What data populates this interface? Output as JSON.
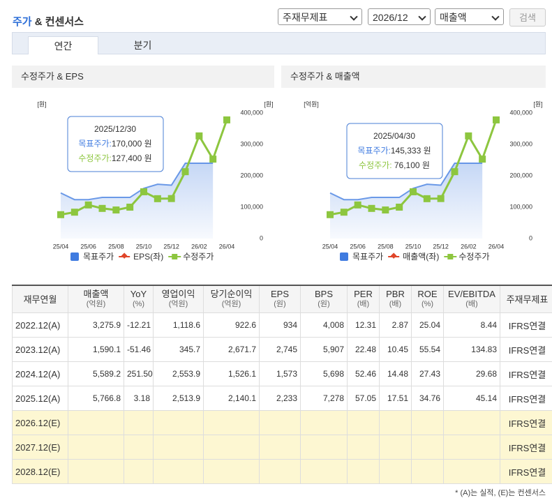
{
  "header": {
    "title_highlight": "주가",
    "title_rest": "& 컨센서스",
    "selects": [
      "주재무제표",
      "2026/12",
      "매출액"
    ],
    "button": "검색"
  },
  "tabs": [
    "연간",
    "분기"
  ],
  "active_tab": 0,
  "chart_data": [
    {
      "type": "line",
      "title": "수정주가 & EPS",
      "ylabel": "[원]",
      "y2label": "[원]",
      "x": [
        "25/04",
        null,
        "25/06",
        null,
        "25/08",
        null,
        "25/10",
        null,
        "25/12",
        null,
        "26/02",
        null,
        "26/04"
      ],
      "y2lim": [
        0,
        400000
      ],
      "y2ticks": [
        0,
        {
          "value": 100000,
          "label": "100,000"
        },
        {
          "value": 200000,
          "label": "200,000"
        },
        {
          "value": 300000,
          "label": "300,000"
        },
        {
          "value": 400000,
          "label": "400,000"
        }
      ],
      "grid": false,
      "legend": "bottom",
      "series": [
        {
          "name": "목표주가",
          "color": "#3f7be0",
          "axis": "y2",
          "marker": "square",
          "area": true,
          "values": [
            145333,
            124000,
            124000,
            131000,
            131000,
            131000,
            160000,
            173000,
            170000,
            240000,
            240000,
            240000,
            null
          ]
        },
        {
          "name": "EPS(좌)",
          "color": "#e0452a",
          "marker": "diamond",
          "values": [
            null,
            null,
            null,
            null,
            null,
            null,
            null,
            null,
            null,
            null,
            null,
            null,
            null
          ]
        },
        {
          "name": "수정주가",
          "color": "#8dc63f",
          "axis": "y2",
          "marker": "square",
          "values": [
            76100,
            84000,
            107000,
            96000,
            91000,
            100000,
            149000,
            127000,
            127400,
            213000,
            327000,
            253000,
            378000
          ]
        }
      ],
      "tooltip": {
        "date": "2025/12/30",
        "lines": [
          {
            "label": "목표주가:",
            "value": "170,000 원"
          },
          {
            "label": "수정주가:",
            "value": "127,400 원"
          }
        ]
      }
    },
    {
      "type": "line",
      "title": "수정주가 & 매출액",
      "ylabel": "[억원]",
      "y2label": "[원]",
      "x": [
        "25/04",
        null,
        "25/06",
        null,
        "25/08",
        null,
        "25/10",
        null,
        "25/12",
        null,
        "26/02",
        null,
        "26/04"
      ],
      "y2lim": [
        0,
        400000
      ],
      "y2ticks": [
        0,
        {
          "value": 100000,
          "label": "100,000"
        },
        {
          "value": 200000,
          "label": "200,000"
        },
        {
          "value": 300000,
          "label": "300,000"
        },
        {
          "value": 400000,
          "label": "400,000"
        }
      ],
      "grid": false,
      "legend": "bottom",
      "series": [
        {
          "name": "목표주가",
          "color": "#3f7be0",
          "axis": "y2",
          "marker": "square",
          "area": true,
          "values": [
            145333,
            124000,
            124000,
            131000,
            131000,
            131000,
            160000,
            173000,
            170000,
            240000,
            240000,
            240000,
            null
          ]
        },
        {
          "name": "매출액(좌)",
          "color": "#e0452a",
          "marker": "diamond",
          "values": [
            null,
            null,
            null,
            null,
            null,
            null,
            null,
            null,
            null,
            null,
            null,
            null,
            null
          ]
        },
        {
          "name": "수정주가",
          "color": "#8dc63f",
          "axis": "y2",
          "marker": "square",
          "values": [
            76100,
            84000,
            107000,
            96000,
            91000,
            100000,
            149000,
            127000,
            127400,
            213000,
            327000,
            253000,
            378000
          ]
        }
      ],
      "tooltip": {
        "date": "2025/04/30",
        "lines": [
          {
            "label": "목표주가:",
            "value": "145,333 원"
          },
          {
            "label": "수정주가:",
            "value": " 76,100 원"
          }
        ]
      }
    }
  ],
  "table": {
    "headers": [
      {
        "name": "재무연월"
      },
      {
        "name": "매출액",
        "unit": "(억원)"
      },
      {
        "name": "YoY",
        "unit": "(%)"
      },
      {
        "name": "영업이익",
        "unit": "(억원)"
      },
      {
        "name": "당기순이익",
        "unit": "(억원)"
      },
      {
        "name": "EPS",
        "unit": "(원)"
      },
      {
        "name": "BPS",
        "unit": "(원)"
      },
      {
        "name": "PER",
        "unit": "(배)"
      },
      {
        "name": "PBR",
        "unit": "(배)"
      },
      {
        "name": "ROE",
        "unit": "(%)"
      },
      {
        "name": "EV/EBITDA",
        "unit": "(배)"
      },
      {
        "name": "주재무제표"
      }
    ],
    "rows": [
      [
        "2022.12(A)",
        "3,275.9",
        "-12.21",
        "1,118.6",
        "922.6",
        "934",
        "4,008",
        "12.31",
        "2.87",
        "25.04",
        "8.44",
        "IFRS연결"
      ],
      [
        "2023.12(A)",
        "1,590.1",
        "-51.46",
        "345.7",
        "2,671.7",
        "2,745",
        "5,907",
        "22.48",
        "10.45",
        "55.54",
        "134.83",
        "IFRS연결"
      ],
      [
        "2024.12(A)",
        "5,589.2",
        "251.50",
        "2,553.9",
        "1,526.1",
        "1,573",
        "5,698",
        "52.46",
        "14.48",
        "27.43",
        "29.68",
        "IFRS연결"
      ],
      [
        "2025.12(A)",
        "5,766.8",
        "3.18",
        "2,513.9",
        "2,140.1",
        "2,233",
        "7,278",
        "57.05",
        "17.51",
        "34.76",
        "45.14",
        "IFRS연결"
      ],
      [
        "2026.12(E)",
        null,
        null,
        null,
        null,
        null,
        null,
        null,
        null,
        null,
        null,
        "IFRS연결"
      ],
      [
        "2027.12(E)",
        null,
        null,
        null,
        null,
        null,
        null,
        null,
        null,
        null,
        null,
        "IFRS연결"
      ],
      [
        "2028.12(E)",
        null,
        null,
        null,
        null,
        null,
        null,
        null,
        null,
        null,
        null,
        "IFRS연결"
      ]
    ]
  },
  "footnote": "* (A)는 실적, (E)는 컨센서스"
}
